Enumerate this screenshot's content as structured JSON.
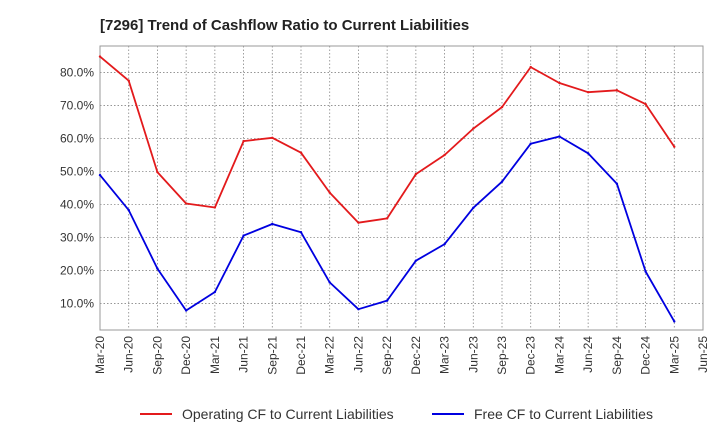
{
  "chart_data": {
    "type": "line",
    "title": "[7296]  Trend of Cashflow Ratio to Current Liabilities",
    "xlabel": "",
    "ylabel": "",
    "categories": [
      "Mar-20",
      "Jun-20",
      "Sep-20",
      "Dec-20",
      "Mar-21",
      "Jun-21",
      "Sep-21",
      "Dec-21",
      "Mar-22",
      "Jun-22",
      "Sep-22",
      "Dec-22",
      "Mar-23",
      "Jun-23",
      "Sep-23",
      "Dec-23",
      "Mar-24",
      "Jun-24",
      "Sep-24",
      "Dec-24",
      "Mar-25",
      "Jun-25"
    ],
    "ylim": [
      2,
      88
    ],
    "yticks": [
      10,
      20,
      30,
      40,
      50,
      60,
      70,
      80
    ],
    "ytick_labels": [
      "10.0%",
      "20.0%",
      "30.0%",
      "40.0%",
      "50.0%",
      "60.0%",
      "70.0%",
      "80.0%"
    ],
    "grid": true,
    "legend_position": "bottom",
    "series": [
      {
        "name": "Operating CF to Current Liabilities",
        "color": "#e31a1c",
        "values": [
          84.8,
          77.5,
          49.8,
          40.3,
          39.1,
          59.2,
          60.2,
          55.7,
          43.6,
          34.5,
          35.8,
          49.2,
          55.0,
          63.0,
          69.5,
          81.6,
          76.8,
          74.0,
          74.6,
          70.4,
          57.5,
          null
        ]
      },
      {
        "name": "Free CF to Current Liabilities",
        "color": "#0000e0",
        "values": [
          48.9,
          38.3,
          20.6,
          7.9,
          13.5,
          30.6,
          34.1,
          31.6,
          16.4,
          8.3,
          10.9,
          23.0,
          28.0,
          39.0,
          46.9,
          58.4,
          60.6,
          55.5,
          46.3,
          19.7,
          4.6,
          null
        ]
      }
    ]
  }
}
